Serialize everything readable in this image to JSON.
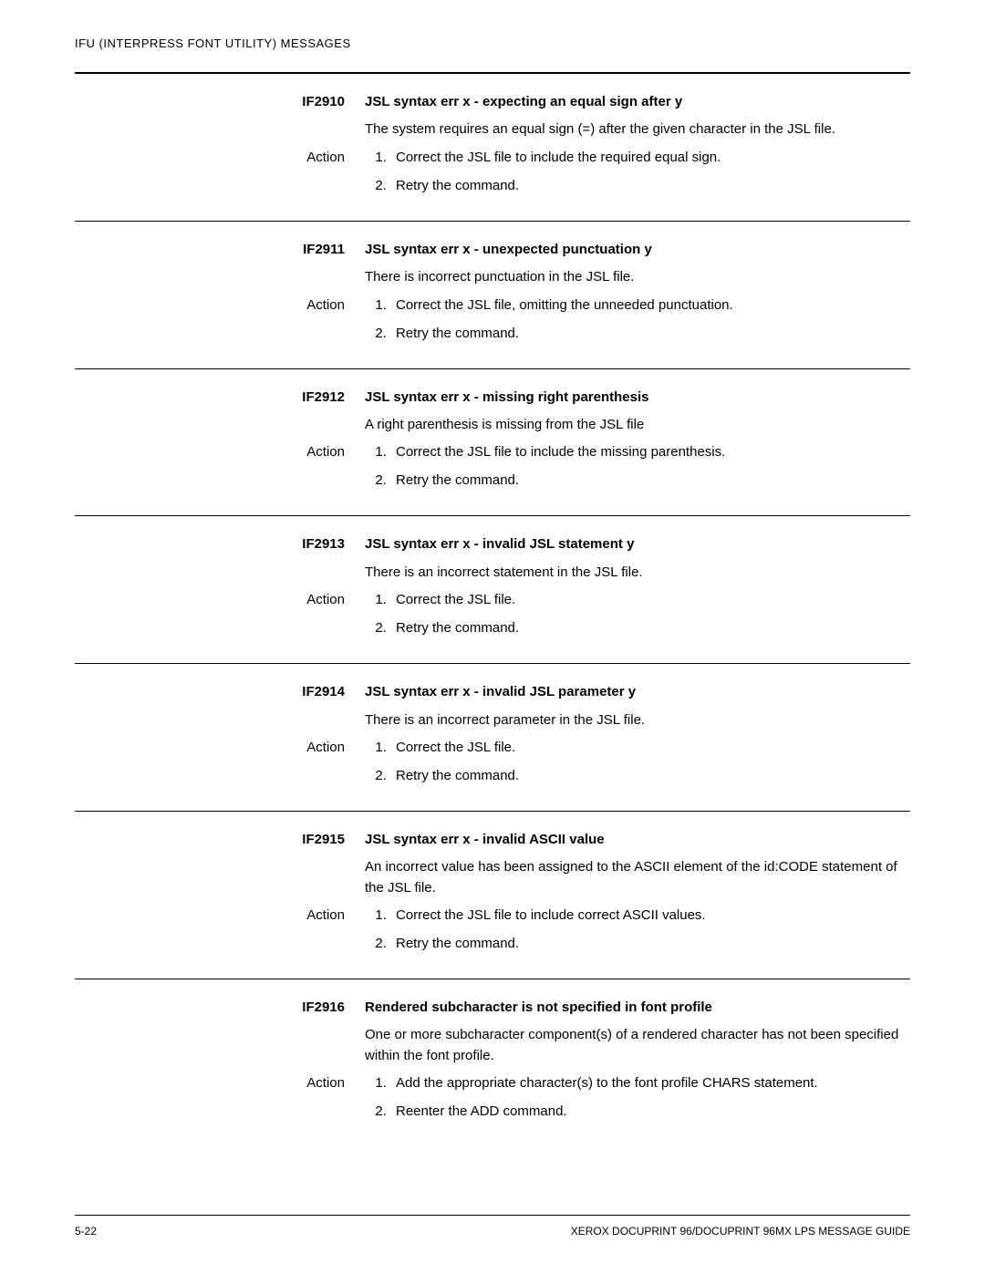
{
  "header": "IFU (INTERPRESS FONT UTILITY) MESSAGES",
  "entries": [
    {
      "code": "IF2910",
      "title": "JSL syntax err x - expecting an equal sign after y",
      "desc": "The system requires an equal sign (=) after the given character in the JSL file.",
      "actionLabel": "Action",
      "steps": [
        "Correct the JSL file to include the required equal sign.",
        "Retry the command."
      ]
    },
    {
      "code": "IF2911",
      "title": "JSL syntax err x - unexpected punctuation y",
      "desc": "There is incorrect punctuation in the JSL file.",
      "actionLabel": "Action",
      "steps": [
        "Correct the JSL file, omitting the unneeded punctuation.",
        "Retry the command."
      ]
    },
    {
      "code": "IF2912",
      "title": "JSL syntax err x - missing right parenthesis",
      "desc": "A right parenthesis is missing from the JSL file",
      "actionLabel": "Action",
      "steps": [
        "Correct the JSL file to include the missing parenthesis.",
        "Retry the command."
      ]
    },
    {
      "code": "IF2913",
      "title": "JSL syntax err x - invalid JSL statement y",
      "desc": "There is an incorrect statement in the JSL file.",
      "actionLabel": "Action",
      "steps": [
        "Correct the JSL file.",
        "Retry the command."
      ]
    },
    {
      "code": "IF2914",
      "title": "JSL syntax err x - invalid JSL parameter y",
      "desc": "There is an incorrect parameter in the JSL file.",
      "actionLabel": "Action",
      "steps": [
        "Correct the JSL file.",
        "Retry the command."
      ]
    },
    {
      "code": "IF2915",
      "title": "JSL syntax err x - invalid ASCII value",
      "desc": "An incorrect value has been assigned to the ASCII element of the id:CODE statement of the JSL file.",
      "actionLabel": "Action",
      "steps": [
        "Correct the JSL file to include correct ASCII values.",
        "Retry the command."
      ]
    },
    {
      "code": "IF2916",
      "title": "Rendered subcharacter is not specified in font profile",
      "desc": "One or more subcharacter component(s) of a rendered character has not been specified within the font profile.",
      "actionLabel": "Action",
      "steps": [
        "Add the appropriate character(s) to the font profile CHARS statement.",
        "Reenter the ADD command."
      ]
    }
  ],
  "footer": {
    "pageNum": "5-22",
    "docTitle": "XEROX DOCUPRINT 96/DOCUPRINT 96MX LPS MESSAGE GUIDE"
  },
  "style": {
    "pageWidth": 1080,
    "pageHeight": 1397,
    "background": "#ffffff",
    "textColor": "#000000",
    "ruleColor": "#000000",
    "topRuleWidth": 2,
    "sectionRuleWidth": 1,
    "bodyFontSize": 15,
    "headerFontSize": 13,
    "footerFontSize": 12,
    "leftColWidth": 318
  }
}
